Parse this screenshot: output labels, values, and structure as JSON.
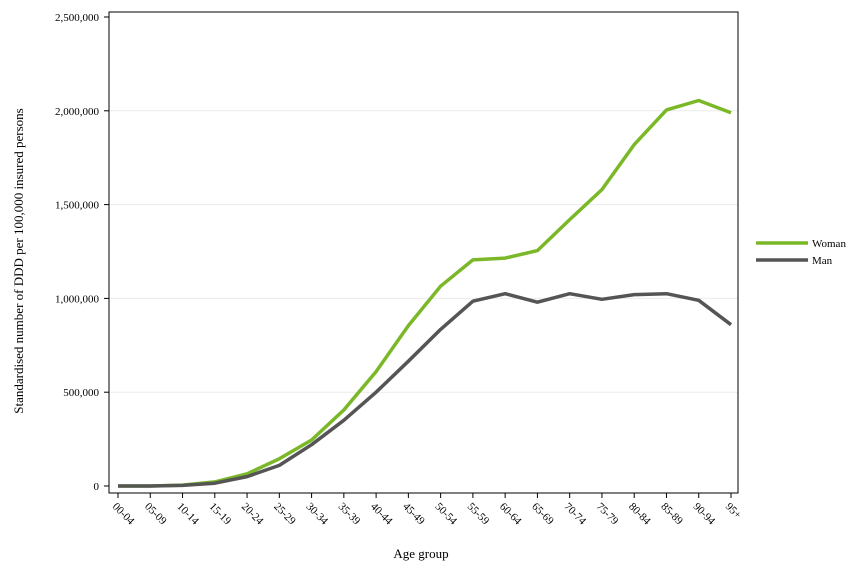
{
  "chart_data": {
    "type": "line",
    "title": "",
    "xlabel": "Age group",
    "ylabel": "Standardised number of DDD per 100,000 insured persons",
    "categories": [
      "00-04",
      "05-09",
      "10-14",
      "15-19",
      "20-24",
      "25-29",
      "30-34",
      "35-39",
      "40-44",
      "45-49",
      "50-54",
      "55-59",
      "60-64",
      "65-69",
      "70-74",
      "75-79",
      "80-84",
      "85-89",
      "90-94",
      "95+"
    ],
    "ylim": [
      0,
      2500000
    ],
    "yticks": [
      0,
      500000,
      1000000,
      1500000,
      2000000,
      2500000
    ],
    "ytick_labels": [
      "0",
      "500,000",
      "1,000,000",
      "1,500,000",
      "2,000,000",
      "2,500,000"
    ],
    "grid": true,
    "legend_position": "right",
    "series": [
      {
        "name": "Woman",
        "color": "#7ab828",
        "values": [
          0,
          0,
          5000,
          22000,
          65000,
          145000,
          245000,
          405000,
          610000,
          855000,
          1065000,
          1205000,
          1215000,
          1255000,
          1420000,
          1580000,
          1820000,
          2005000,
          2055000,
          1990000
        ]
      },
      {
        "name": "Man",
        "color": "#555555",
        "values": [
          0,
          0,
          3000,
          15000,
          50000,
          110000,
          220000,
          350000,
          500000,
          665000,
          835000,
          985000,
          1025000,
          980000,
          1025000,
          995000,
          1020000,
          1025000,
          990000,
          860000
        ]
      }
    ]
  }
}
